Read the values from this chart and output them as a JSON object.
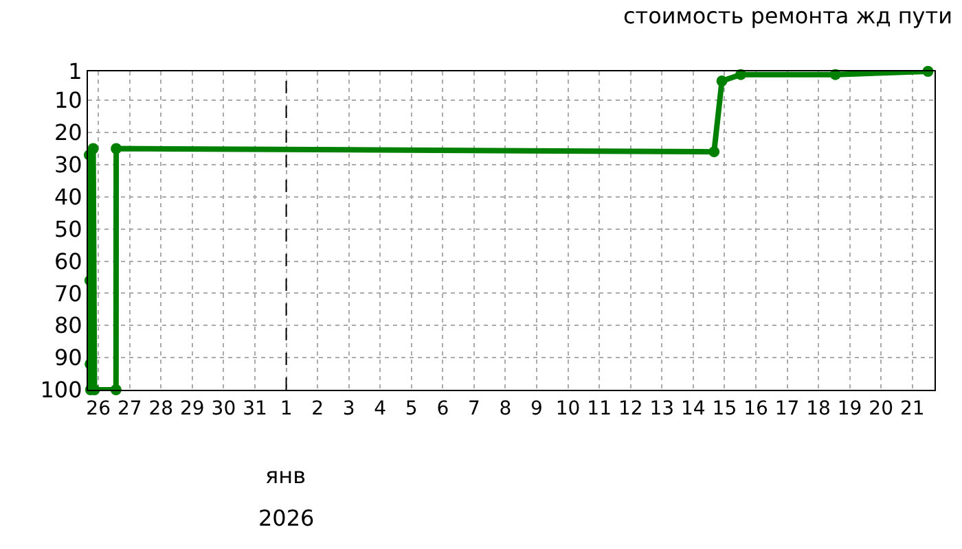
{
  "chart_data": {
    "type": "line",
    "title": "стоимость ремонта жд пути",
    "series": [
      {
        "color": "#008000",
        "x": [
          "2025-12-25T17:00",
          "2025-12-25T17:30",
          "2025-12-25T17:40",
          "2025-12-25T18:00",
          "2025-12-25T20:00",
          "2025-12-25T21:00",
          "2025-12-26T13:30",
          "2025-12-26T13:40",
          "2026-01-14T16:00",
          "2026-01-14T22:00",
          "2026-01-15T12:30",
          "2026-01-18T13:00",
          "2026-01-21T12:00"
        ],
        "values": [
          27,
          66,
          92,
          100,
          25,
          100,
          100,
          25,
          26,
          4,
          2,
          2,
          1
        ]
      }
    ],
    "xlim": [
      "2025-12-25T16:00",
      "2026-01-21T17:00"
    ],
    "xticks": [
      {
        "value": "2025-12-26",
        "label": "26"
      },
      {
        "value": "2025-12-27",
        "label": "27"
      },
      {
        "value": "2025-12-28",
        "label": "28"
      },
      {
        "value": "2025-12-29",
        "label": "29"
      },
      {
        "value": "2025-12-30",
        "label": "30"
      },
      {
        "value": "2025-12-31",
        "label": "31"
      },
      {
        "value": "2026-01-01",
        "label": "1"
      },
      {
        "value": "2026-01-02",
        "label": "2"
      },
      {
        "value": "2026-01-03",
        "label": "3"
      },
      {
        "value": "2026-01-04",
        "label": "4"
      },
      {
        "value": "2026-01-05",
        "label": "5"
      },
      {
        "value": "2026-01-06",
        "label": "6"
      },
      {
        "value": "2026-01-07",
        "label": "7"
      },
      {
        "value": "2026-01-08",
        "label": "8"
      },
      {
        "value": "2026-01-09",
        "label": "9"
      },
      {
        "value": "2026-01-10",
        "label": "10"
      },
      {
        "value": "2026-01-11",
        "label": "11"
      },
      {
        "value": "2026-01-12",
        "label": "12"
      },
      {
        "value": "2026-01-13",
        "label": "13"
      },
      {
        "value": "2026-01-14",
        "label": "14"
      },
      {
        "value": "2026-01-15",
        "label": "15"
      },
      {
        "value": "2026-01-16",
        "label": "16"
      },
      {
        "value": "2026-01-17",
        "label": "17"
      },
      {
        "value": "2026-01-18",
        "label": "18"
      },
      {
        "value": "2026-01-19",
        "label": "19"
      },
      {
        "value": "2026-01-20",
        "label": "20"
      },
      {
        "value": "2026-01-21",
        "label": "21"
      }
    ],
    "ylim": [
      100,
      1
    ],
    "yticks": [
      1,
      10,
      20,
      30,
      40,
      50,
      60,
      70,
      80,
      90,
      100
    ],
    "ref_lines": [
      {
        "axis": "x",
        "value": "2026-01-01",
        "color": "#000000",
        "line_style": "dashed"
      }
    ],
    "annotations": [
      "янв",
      "2026"
    ],
    "grid": true,
    "marker": "circle",
    "line_style": "solid"
  }
}
